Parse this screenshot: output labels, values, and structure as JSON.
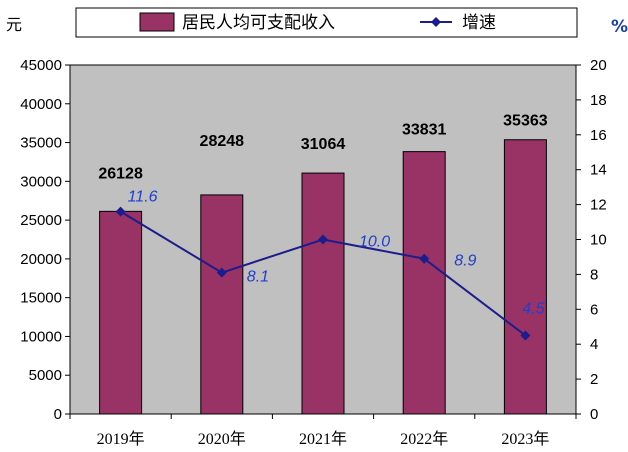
{
  "chart_data": {
    "type": "bar",
    "categories": [
      "2019年",
      "2020年",
      "2021年",
      "2022年",
      "2023年"
    ],
    "series": [
      {
        "name": "居民人均可支配收入",
        "type": "bar",
        "axis": "left",
        "values": [
          26128,
          28248,
          31064,
          33831,
          35363
        ]
      },
      {
        "name": "增速",
        "type": "line",
        "axis": "right",
        "values": [
          11.6,
          8.1,
          10.0,
          8.9,
          4.5
        ]
      }
    ],
    "value_labels": [
      "26128",
      "28248",
      "31064",
      "33831",
      "35363"
    ],
    "rate_labels": [
      "11.6",
      "8.1",
      "10.0",
      "8.9",
      "4.5"
    ],
    "ylabel": "元",
    "ylabel_right": "%",
    "ylim": [
      0,
      45000
    ],
    "yticks": [
      0,
      5000,
      10000,
      15000,
      20000,
      25000,
      30000,
      35000,
      40000,
      45000
    ],
    "ylim_right": [
      0,
      20
    ],
    "yticks_right": [
      0,
      2,
      4,
      6,
      8,
      10,
      12,
      14,
      16,
      18,
      20
    ],
    "legend_position": "top",
    "grid": false,
    "colors": {
      "bar": "#993366",
      "line": "#1c1c8c",
      "rate_label": "#1f3fcf",
      "plot_bg": "#c0c0c0"
    }
  }
}
